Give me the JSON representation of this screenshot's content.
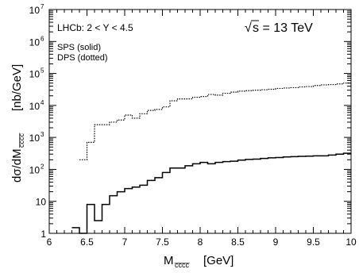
{
  "chart_data": {
    "type": "line",
    "title": "",
    "xlabel": {
      "main": "M",
      "sub": "c̅c̅c̅c̅",
      "unit": "[GeV]"
    },
    "ylabel": {
      "main": "dσ/dM",
      "sub": "c̅c̅c̅c̅",
      "unit": "[nb/GeV]"
    },
    "xlim": [
      6,
      10
    ],
    "ylim": [
      1,
      10000000
    ],
    "yscale": "log",
    "grid": false,
    "x_ticks": [
      "6",
      "6.5",
      "7",
      "7.5",
      "8",
      "8.5",
      "9",
      "9.5",
      "10"
    ],
    "y_ticks": [
      {
        "value": 1,
        "base": "1",
        "exp": ""
      },
      {
        "value": 10,
        "base": "10",
        "exp": ""
      },
      {
        "value": 100,
        "base": "10",
        "exp": "2"
      },
      {
        "value": 1000,
        "base": "10",
        "exp": "3"
      },
      {
        "value": 10000,
        "base": "10",
        "exp": "4"
      },
      {
        "value": 100000,
        "base": "10",
        "exp": "5"
      },
      {
        "value": 1000000,
        "base": "10",
        "exp": "6"
      },
      {
        "value": 10000000,
        "base": "10",
        "exp": "7"
      }
    ],
    "annotations": {
      "cut": "LHCb: 2 < Y < 4.5",
      "energy_prefix": "s = 13 TeV",
      "sps": "SPS (solid)",
      "dps": "DPS (dotted)"
    },
    "series": [
      {
        "style": "solid",
        "color": "#000000",
        "bin_width": 0.1,
        "x_start": 6.3,
        "values": [
          1.5,
          1.0,
          8,
          2.5,
          8,
          15,
          20,
          25,
          28,
          32,
          45,
          55,
          80,
          110,
          110,
          130,
          150,
          165,
          150,
          165,
          175,
          180,
          195,
          205,
          210,
          220,
          230,
          235,
          245,
          250,
          255,
          260,
          265,
          265,
          280,
          300,
          320
        ]
      },
      {
        "style": "dotted",
        "color": "#000000",
        "bin_width": 0.1,
        "x_start": 6.4,
        "values": [
          200,
          700,
          2500,
          2500,
          3000,
          3500,
          5000,
          4000,
          5500,
          7000,
          7500,
          9000,
          14000,
          16000,
          16000,
          18000,
          19000,
          22000,
          21000,
          24000,
          26000,
          28000,
          29000,
          30000,
          31000,
          32000,
          34000,
          35000,
          36000,
          38000,
          39000,
          42000,
          44000,
          45000,
          47000,
          50000
        ]
      }
    ]
  }
}
